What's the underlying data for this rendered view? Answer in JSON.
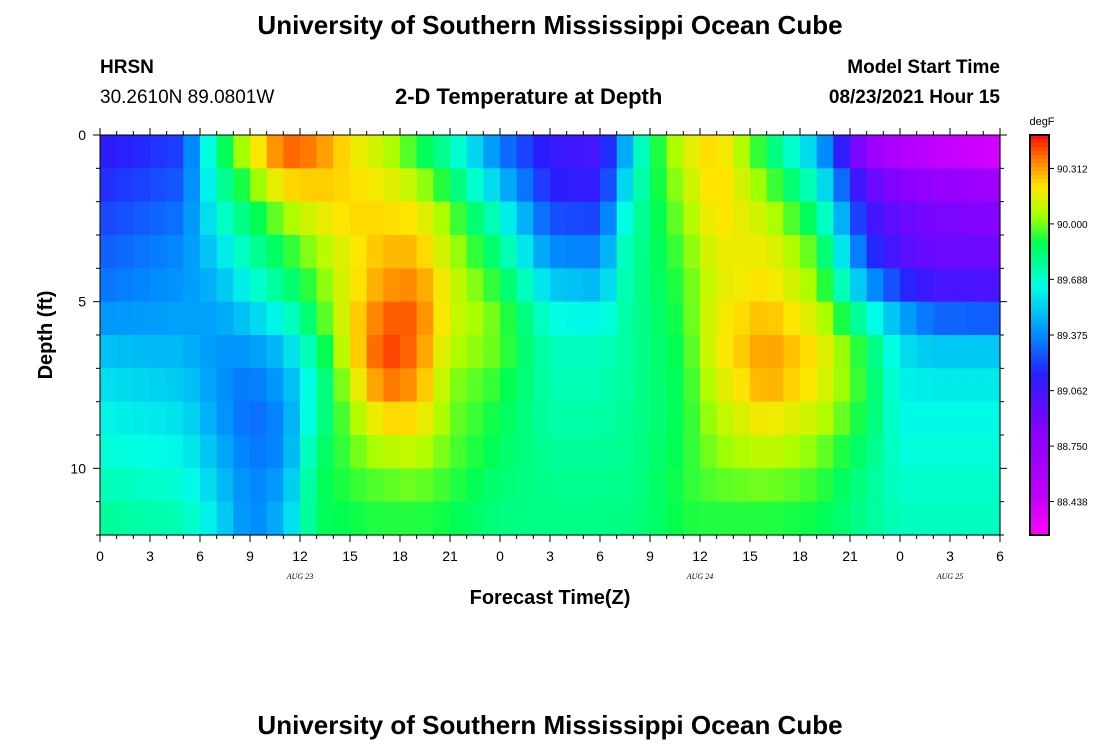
{
  "page": {
    "title_top": "University of Southern Mississippi Ocean Cube",
    "title_bottom": "University of Southern Mississippi Ocean Cube",
    "station": "HRSN",
    "coords": "30.2610N  89.0801W",
    "model_label": "Model Start Time",
    "model_time": "08/23/2021 Hour 15"
  },
  "chart_data": {
    "type": "heatmap",
    "title": "2-D Temperature at Depth",
    "xlabel": "Forecast Time(Z)",
    "ylabel": "Depth (ft)",
    "x_ticks": [
      "0",
      "3",
      "6",
      "9",
      "12",
      "15",
      "18",
      "21",
      "0",
      "3",
      "6",
      "9",
      "12",
      "15",
      "18",
      "21",
      "0",
      "3",
      "6"
    ],
    "x_range_hours": [
      0,
      54
    ],
    "date_labels": [
      {
        "text": "AUG 23",
        "hour": 12
      },
      {
        "text": "AUG 24",
        "hour": 36
      },
      {
        "text": "AUG 25",
        "hour": 51
      }
    ],
    "y_ticks": [
      "0",
      "5",
      "10"
    ],
    "y_range_ft": [
      0,
      12
    ],
    "colorbar": {
      "unit": "degF",
      "min": 88.25,
      "max": 90.5,
      "labels": [
        "90.312",
        "90.000",
        "89.688",
        "89.375",
        "89.062",
        "88.750",
        "88.438"
      ]
    },
    "depth_levels_ft": [
      0,
      1,
      2,
      3,
      4,
      5,
      6,
      7,
      8,
      9,
      10,
      11,
      12
    ],
    "profiles": [
      {
        "hour": 0,
        "temps": [
          89.1,
          89.15,
          89.2,
          89.25,
          89.3,
          89.35,
          89.45,
          89.55,
          89.6,
          89.65,
          89.7,
          89.75,
          89.8
        ]
      },
      {
        "hour": 5,
        "temps": [
          89.2,
          89.25,
          89.3,
          89.35,
          89.4,
          89.4,
          89.45,
          89.5,
          89.55,
          89.6,
          89.65,
          89.7,
          89.75
        ]
      },
      {
        "hour": 7,
        "temps": [
          89.85,
          89.75,
          89.7,
          89.6,
          89.5,
          89.45,
          89.4,
          89.4,
          89.4,
          89.45,
          89.5,
          89.55,
          89.6
        ]
      },
      {
        "hour": 9,
        "temps": [
          90.2,
          90.05,
          89.9,
          89.8,
          89.7,
          89.6,
          89.45,
          89.35,
          89.3,
          89.3,
          89.35,
          89.35,
          89.35
        ]
      },
      {
        "hour": 11,
        "temps": [
          90.45,
          90.35,
          90.1,
          89.95,
          89.85,
          89.75,
          89.55,
          89.45,
          89.4,
          89.35,
          89.4,
          89.45,
          89.5
        ]
      },
      {
        "hour": 13,
        "temps": [
          90.4,
          90.3,
          90.2,
          90.1,
          90.0,
          89.95,
          89.85,
          89.75,
          89.7,
          89.8,
          89.85,
          89.88,
          89.85
        ]
      },
      {
        "hour": 15,
        "temps": [
          90.2,
          90.2,
          90.25,
          90.2,
          90.15,
          90.2,
          90.2,
          90.15,
          90.05,
          90.0,
          89.95,
          89.92,
          89.88
        ]
      },
      {
        "hour": 17,
        "temps": [
          90.05,
          90.15,
          90.2,
          90.25,
          90.3,
          90.35,
          90.45,
          90.45,
          90.3,
          90.15,
          90.0,
          89.95,
          89.9
        ]
      },
      {
        "hour": 19,
        "temps": [
          89.85,
          90.0,
          90.15,
          90.25,
          90.3,
          90.4,
          90.4,
          90.35,
          90.3,
          90.15,
          90.05,
          89.95,
          89.9
        ]
      },
      {
        "hour": 21,
        "temps": [
          89.7,
          89.8,
          89.95,
          90.05,
          90.1,
          90.15,
          90.1,
          90.05,
          90.0,
          90.0,
          89.95,
          89.92,
          89.88
        ]
      },
      {
        "hour": 24,
        "temps": [
          89.3,
          89.4,
          89.6,
          89.75,
          89.85,
          89.95,
          90.0,
          89.95,
          89.9,
          89.88,
          89.85,
          89.82,
          89.8
        ]
      },
      {
        "hour": 27,
        "temps": [
          89.1,
          89.1,
          89.2,
          89.3,
          89.45,
          89.6,
          89.7,
          89.72,
          89.74,
          89.76,
          89.78,
          89.8,
          89.8
        ]
      },
      {
        "hour": 30,
        "temps": [
          89.05,
          89.05,
          89.15,
          89.3,
          89.4,
          89.55,
          89.7,
          89.72,
          89.74,
          89.76,
          89.78,
          89.8,
          89.8
        ]
      },
      {
        "hour": 31.5,
        "temps": [
          89.4,
          89.5,
          89.6,
          89.7,
          89.72,
          89.74,
          89.75,
          89.76,
          89.77,
          89.78,
          89.79,
          89.8,
          89.82
        ]
      },
      {
        "hour": 33,
        "temps": [
          89.85,
          89.85,
          89.85,
          89.85,
          89.84,
          89.83,
          89.82,
          89.82,
          89.82,
          89.82,
          89.83,
          89.84,
          89.85
        ]
      },
      {
        "hour": 35,
        "temps": [
          90.15,
          90.1,
          90.05,
          90.0,
          89.95,
          89.95,
          89.92,
          89.9,
          89.9,
          89.9,
          89.92,
          89.93,
          89.9
        ]
      },
      {
        "hour": 37,
        "temps": [
          90.25,
          90.25,
          90.25,
          90.2,
          90.15,
          90.15,
          90.2,
          90.15,
          90.1,
          90.05,
          90.0,
          89.95,
          89.9
        ]
      },
      {
        "hour": 40,
        "temps": [
          89.8,
          89.95,
          90.05,
          90.15,
          90.2,
          90.25,
          90.3,
          90.35,
          90.25,
          90.15,
          90.05,
          89.95,
          89.9
        ]
      },
      {
        "hour": 43,
        "temps": [
          89.4,
          89.6,
          89.75,
          89.9,
          90.0,
          90.05,
          90.2,
          90.2,
          90.15,
          90.05,
          89.98,
          89.92,
          89.88
        ]
      },
      {
        "hour": 46,
        "temps": [
          88.65,
          88.85,
          89.05,
          89.15,
          89.3,
          89.55,
          89.85,
          89.9,
          89.9,
          89.85,
          89.8,
          89.78,
          89.78
        ]
      },
      {
        "hour": 48,
        "temps": [
          88.35,
          88.75,
          88.9,
          88.95,
          89.05,
          89.35,
          89.55,
          89.6,
          89.62,
          89.65,
          89.68,
          89.7,
          89.72
        ]
      },
      {
        "hour": 50,
        "temps": [
          88.3,
          88.65,
          88.85,
          88.9,
          88.95,
          89.15,
          89.45,
          89.58,
          89.62,
          89.65,
          89.68,
          89.7,
          89.72
        ]
      },
      {
        "hour": 54,
        "temps": [
          88.25,
          88.55,
          88.8,
          88.88,
          88.95,
          89.1,
          89.45,
          89.58,
          89.62,
          89.65,
          89.68,
          89.7,
          89.72
        ]
      }
    ]
  }
}
